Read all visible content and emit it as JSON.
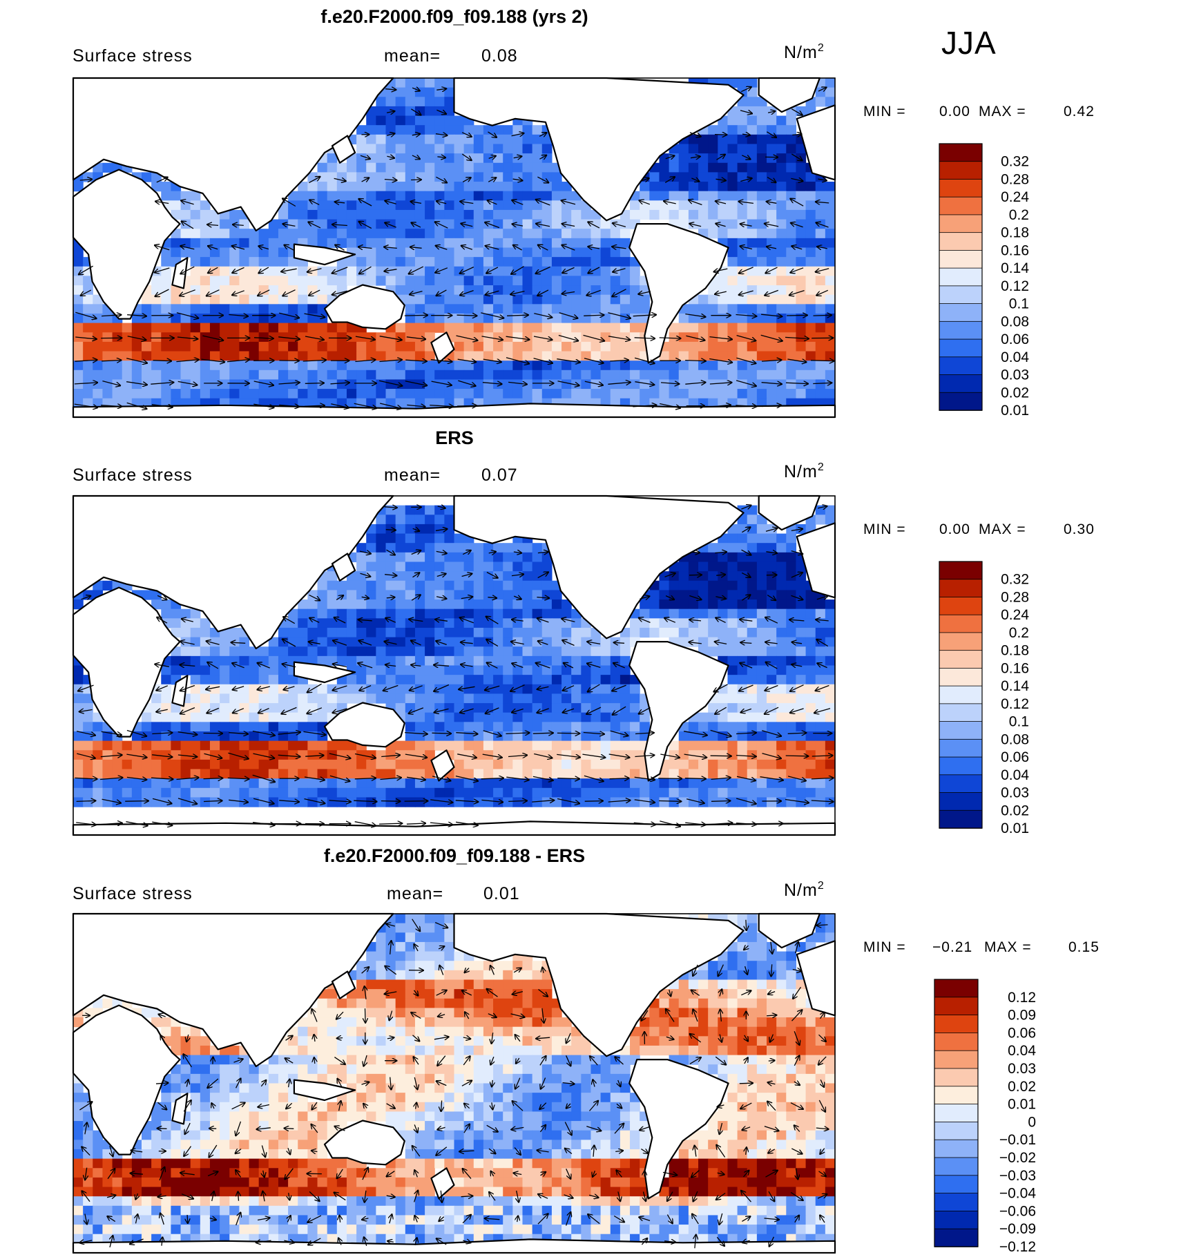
{
  "season": "JJA",
  "colors": {
    "scale13": [
      "#00178a",
      "#0029b0",
      "#0f46d6",
      "#2f6ff0",
      "#5b90f5",
      "#8eb2f8",
      "#bcd2fb",
      "#e1ecfd",
      "#fce8da",
      "#fbcab0",
      "#f7a178",
      "#ef7140",
      "#de4410",
      "#b82000",
      "#7a0000"
    ],
    "diff14": [
      "#00178a",
      "#0029b0",
      "#0f46d6",
      "#2f6ff0",
      "#5b90f5",
      "#8eb2f8",
      "#bcd2fb",
      "#e1ecfd",
      "#fdeedd",
      "#fbcab0",
      "#f7a178",
      "#ef7140",
      "#de4410",
      "#b82000",
      "#7a0000"
    ]
  },
  "panels": [
    {
      "title": "f.e20.F2000.f09_f09.188 (yrs 2)",
      "variable": "Surface stress",
      "mean_label": "mean=",
      "mean_value": "0.08",
      "units": "N/m",
      "units_exp": "2",
      "min_label": "MIN =",
      "min_value": "0.00",
      "max_label": "MAX =",
      "max_value": "0.42"
    },
    {
      "title": "ERS",
      "variable": "Surface stress",
      "mean_label": "mean=",
      "mean_value": "0.07",
      "units": "N/m",
      "units_exp": "2",
      "min_label": "MIN =",
      "min_value": "0.00",
      "max_label": "MAX =",
      "max_value": "0.30"
    },
    {
      "title": "f.e20.F2000.f09_f09.188 - ERS",
      "variable": "Surface stress",
      "mean_label": "mean=",
      "mean_value": "0.01",
      "units": "N/m",
      "units_exp": "2",
      "min_label": "MIN =",
      "min_value": "−0.21",
      "max_label": "MAX =",
      "max_value": "0.15"
    }
  ],
  "chart_data": [
    {
      "type": "heatmap",
      "title": "f.e20.F2000.f09_f09.188 (yrs 2)",
      "field": "Surface stress",
      "units": "N/m^2",
      "mean": 0.08,
      "min": 0.0,
      "max": 0.42,
      "colorbar_levels": [
        "0.32",
        "0.28",
        "0.24",
        "0.2",
        "0.18",
        "0.16",
        "0.14",
        "0.12",
        "0.1",
        "0.08",
        "0.06",
        "0.04",
        "0.03",
        "0.02",
        "0.01"
      ]
    },
    {
      "type": "heatmap",
      "title": "ERS",
      "field": "Surface stress",
      "units": "N/m^2",
      "mean": 0.07,
      "min": 0.0,
      "max": 0.3,
      "colorbar_levels": [
        "0.32",
        "0.28",
        "0.24",
        "0.2",
        "0.18",
        "0.16",
        "0.14",
        "0.12",
        "0.1",
        "0.08",
        "0.06",
        "0.04",
        "0.03",
        "0.02",
        "0.01"
      ]
    },
    {
      "type": "heatmap",
      "title": "f.e20.F2000.f09_f09.188 - ERS",
      "field": "Surface stress",
      "units": "N/m^2",
      "mean": 0.01,
      "min": -0.21,
      "max": 0.15,
      "colorbar_levels": [
        "0.12",
        "0.09",
        "0.06",
        "0.04",
        "0.03",
        "0.02",
        "0.01",
        "0",
        "−0.01",
        "−0.02",
        "−0.03",
        "−0.04",
        "−0.06",
        "−0.09",
        "−0.12"
      ]
    }
  ]
}
